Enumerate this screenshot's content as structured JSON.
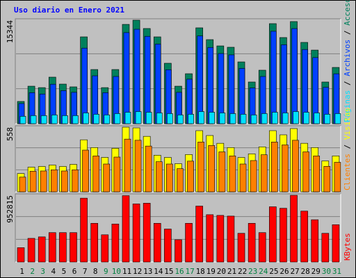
{
  "chart_data": [
    {
      "type": "bar",
      "title": "Uso diario en Enero 2021",
      "ylim": [
        0,
        15344
      ],
      "yticks": [
        15344
      ],
      "legend_separator": " / ",
      "series": [
        {
          "name": "Accesos",
          "color": "#00805c",
          "values": [
            3300,
            5560,
            5350,
            6900,
            5870,
            5460,
            12870,
            8030,
            5350,
            8030,
            14720,
            15344,
            14110,
            12870,
            8960,
            5560,
            7410,
            14210,
            12460,
            11530,
            11330,
            9160,
            6180,
            7930,
            14830,
            12770,
            15140,
            12050,
            10910,
            6180,
            8340
          ]
        },
        {
          "name": "Archivos",
          "color": "#0040ff",
          "values": [
            2990,
            4600,
            4400,
            5850,
            4900,
            4650,
            11200,
            7100,
            4600,
            7000,
            13500,
            14000,
            12950,
            11800,
            8000,
            4650,
            6600,
            13000,
            11300,
            10400,
            10200,
            8200,
            5300,
            7000,
            13700,
            11700,
            14100,
            11000,
            9800,
            5400,
            7400
          ]
        },
        {
          "name": "Páginas",
          "color": "#00e0ff",
          "values": [
            1100,
            1200,
            1200,
            1300,
            1200,
            1200,
            1600,
            1400,
            1300,
            1500,
            1700,
            1800,
            1700,
            1600,
            1500,
            1300,
            1400,
            1800,
            1700,
            1600,
            1500,
            1400,
            1300,
            1500,
            1700,
            1600,
            1800,
            1700,
            1600,
            1400,
            1500
          ]
        }
      ]
    },
    {
      "type": "bar",
      "ylim": [
        0,
        558
      ],
      "yticks": [
        558
      ],
      "legend_separator": " / ",
      "series": [
        {
          "name": "Visitas",
          "color": "#ffff00",
          "values": [
            158,
            213,
            219,
            231,
            219,
            237,
            449,
            382,
            297,
            376,
            558,
            552,
            479,
            316,
            297,
            243,
            322,
            528,
            486,
            419,
            382,
            297,
            328,
            388,
            528,
            492,
            546,
            419,
            382,
            267,
            310
          ]
        },
        {
          "name": "Clientes",
          "color": "#ff8000",
          "values": [
            127,
            178,
            180,
            190,
            180,
            190,
            360,
            310,
            240,
            300,
            455,
            445,
            395,
            260,
            240,
            200,
            265,
            430,
            400,
            345,
            310,
            240,
            270,
            320,
            430,
            405,
            445,
            345,
            310,
            220,
            255
          ]
        }
      ]
    },
    {
      "type": "bar",
      "ylim": [
        0,
        952815
      ],
      "yticks": [
        952815
      ],
      "series": [
        {
          "name": "KBytes",
          "color": "#ff0000",
          "values": [
            205000,
            338000,
            359000,
            420000,
            420000,
            420000,
            912000,
            553000,
            389000,
            543000,
            948000,
            830000,
            840000,
            553000,
            471000,
            318000,
            553000,
            799000,
            676000,
            666000,
            656000,
            410000,
            553000,
            420000,
            789000,
            768000,
            952815,
            727000,
            604000,
            410000,
            533000
          ]
        }
      ],
      "categories": [
        "1",
        "2",
        "3",
        "4",
        "5",
        "6",
        "7",
        "8",
        "9",
        "10",
        "11",
        "12",
        "13",
        "14",
        "15",
        "16",
        "17",
        "18",
        "19",
        "20",
        "21",
        "22",
        "23",
        "24",
        "25",
        "26",
        "27",
        "28",
        "29",
        "30",
        "31"
      ],
      "category_colors": [
        "#000000",
        "#008040",
        "#008040",
        "#000000",
        "#000000",
        "#000000",
        "#000000",
        "#000000",
        "#008040",
        "#008040",
        "#000000",
        "#000000",
        "#000000",
        "#000000",
        "#000000",
        "#008040",
        "#008040",
        "#000000",
        "#000000",
        "#000000",
        "#000000",
        "#000000",
        "#008040",
        "#008040",
        "#000000",
        "#000000",
        "#000000",
        "#000000",
        "#000000",
        "#008040",
        "#008040"
      ]
    }
  ]
}
